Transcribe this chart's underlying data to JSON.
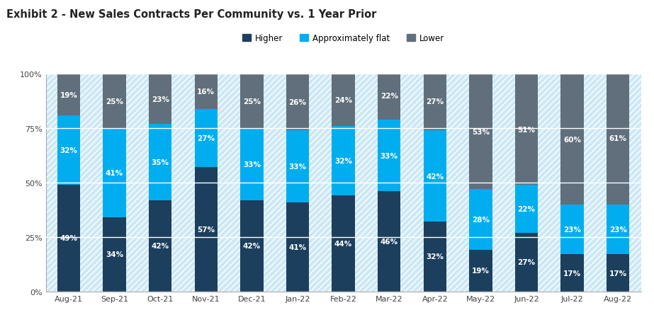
{
  "title": "Exhibit 2 - New Sales Contracts Per Community vs. 1 Year Prior",
  "categories": [
    "Aug-21",
    "Sep-21",
    "Oct-21",
    "Nov-21",
    "Dec-21",
    "Jan-22",
    "Feb-22",
    "Mar-22",
    "Apr-22",
    "May-22",
    "Jun-22",
    "Jul-22",
    "Aug-22"
  ],
  "higher": [
    49,
    34,
    42,
    57,
    42,
    41,
    44,
    46,
    32,
    19,
    27,
    17,
    17
  ],
  "approx_flat": [
    32,
    41,
    35,
    27,
    33,
    33,
    32,
    33,
    42,
    28,
    22,
    23,
    23
  ],
  "lower": [
    19,
    25,
    23,
    16,
    25,
    26,
    24,
    22,
    27,
    53,
    51,
    60,
    61
  ],
  "color_higher": "#1c3f5e",
  "color_approx_flat": "#00aeef",
  "color_lower": "#606f7b",
  "color_bg_stripe": "#cce8f4",
  "bar_width": 0.5,
  "figsize": [
    9.23,
    4.39
  ],
  "dpi": 100,
  "ylim": [
    0,
    100
  ],
  "yticks": [
    0,
    25,
    50,
    75,
    100
  ],
  "ytick_labels": [
    "0%",
    "25%",
    "50%",
    "75%",
    "100%"
  ],
  "legend_labels": [
    "Higher",
    "Approximately flat",
    "Lower"
  ],
  "title_fontsize": 10.5,
  "label_fontsize": 7.5,
  "tick_fontsize": 8,
  "legend_fontsize": 8.5
}
